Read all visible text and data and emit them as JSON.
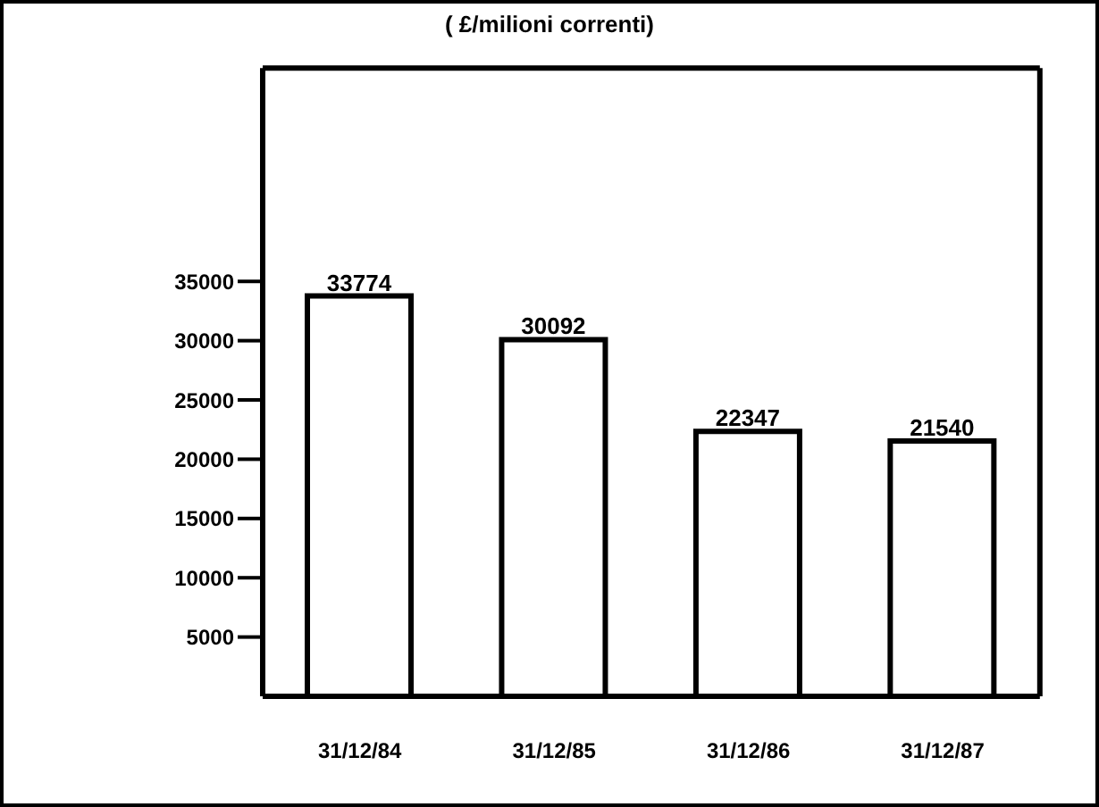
{
  "chart_data": {
    "type": "bar",
    "title": "( £/milioni correnti)",
    "categories": [
      "31/12/84",
      "31/12/85",
      "31/12/86",
      "31/12/87"
    ],
    "values": [
      33774,
      30092,
      22347,
      21540
    ],
    "color": "#ffffff",
    "ylim": [
      0,
      53000
    ],
    "yticks": [
      5000,
      10000,
      15000,
      20000,
      25000,
      30000,
      35000
    ],
    "data_labels": true
  }
}
